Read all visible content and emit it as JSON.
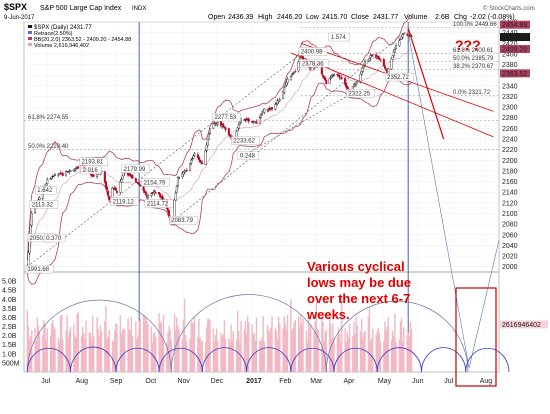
{
  "header": {
    "symbol": "$SPX",
    "name": "S&P 500 Large Cap Index",
    "exchange": "INDX",
    "date": "9-Jun-2017",
    "open_label": "Open",
    "open": "2436.39",
    "high_label": "High",
    "high": "2446.20",
    "low_label": "Low",
    "low": "2415.70",
    "close_label": "Close",
    "close": "2431.77",
    "volume_label": "Volume",
    "volume": "2.6B",
    "chg_label": "Chg",
    "chg": "-2.02 (-0.08%)",
    "watermark": "© StockCharts.com"
  },
  "legend": {
    "line1": "$SPX (Daily) 2431.77",
    "line2": "Retrace(2.50%)",
    "line3": "BB(20,2.0) 2363.52 - 2409.20 - 2454.88",
    "line4": "Volume 2,616,946,402"
  },
  "annotation": {
    "question": "???",
    "line1": "Various cyclical",
    "line2": "lows may be due",
    "line3": "over the next 6-7",
    "line4": "weeks."
  },
  "colors": {
    "up": "#1a1a1a",
    "down": "#c0001e",
    "bollinger": "#b04060",
    "volume": "#f2b8c4",
    "cycle_arc": "#3a3ac8",
    "vline": "#4466aa",
    "fib": "#999999",
    "annotation": "#e00000",
    "box": "#c00000"
  },
  "chart_data": {
    "type": "line",
    "title": "$SPX S&P 500 Large Cap Index INDX",
    "xlabel": "",
    "ylabel": "",
    "ylim": [
      1990,
      2460
    ],
    "volume_ylim": [
      0,
      5.5
    ],
    "x_ticks": [
      "Jul",
      "Aug",
      "Sep",
      "Oct",
      "Nov",
      "Dec",
      "2017",
      "Feb",
      "Mar",
      "Apr",
      "May",
      "Jun",
      "Jul",
      "Aug"
    ],
    "price_ticks": [
      "2460",
      "2440",
      "2420",
      "2400",
      "2380",
      "2360",
      "2340",
      "2320",
      "2300",
      "2280",
      "2260",
      "2240",
      "2220",
      "2200",
      "2180",
      "2160",
      "2140",
      "2120",
      "2100",
      "2080",
      "2060",
      "2040",
      "2020",
      "2000"
    ],
    "volume_ticks": [
      "5.0B",
      "4.5B",
      "4.0B",
      "3.5B",
      "3.0B",
      "2.5B",
      "2.0B",
      "1.5B",
      "1.0B",
      "500M"
    ],
    "last_values": [
      "2454.88",
      "2431.77",
      "2409.20",
      "2363.52",
      "2616946402"
    ],
    "fib_levels": [
      {
        "label": "100.0% 2449.66",
        "value": 2449.66
      },
      {
        "label": "61.8% 2400.61",
        "value": 2400.61
      },
      {
        "label": "50.0% 2385.79",
        "value": 2385.79
      },
      {
        "label": "38.2% 2370.67",
        "value": 2370.67
      },
      {
        "label": "0.0% 2321.72",
        "value": 2321.72
      },
      {
        "label": "61.8% 2274.55",
        "value": 2274.55
      },
      {
        "label": "50.0% 2220.40",
        "value": 2220.4
      }
    ],
    "price_labels": [
      {
        "label": "1991.68",
        "date": "2016-06-27",
        "value": 1991.68
      },
      {
        "label": "2113.32",
        "date": "2016-07-01",
        "value": 2113.32
      },
      {
        "label": "2050.37",
        "date": "2016-06-29",
        "value": 2050.37
      },
      {
        "label": "1.642",
        "date": "2016-07-06",
        "value": 2140
      },
      {
        "label": "0.370",
        "date": "2016-07-14",
        "value": 2050
      },
      {
        "label": "2193.81",
        "date": "2016-08-15",
        "value": 2193.81
      },
      {
        "label": "2.016",
        "date": "2016-08-16",
        "value": 2178
      },
      {
        "label": "2179.99",
        "date": "2016-09-22",
        "value": 2179.99
      },
      {
        "label": "2119.12",
        "date": "2016-09-12",
        "value": 2119.12
      },
      {
        "label": "2154.79",
        "date": "2016-10-10",
        "value": 2154.79
      },
      {
        "label": "2114.72",
        "date": "2016-10-13",
        "value": 2114.72
      },
      {
        "label": "2083.79",
        "date": "2016-11-04",
        "value": 2083.79
      },
      {
        "label": "2277.53",
        "date": "2016-12-13",
        "value": 2277.53
      },
      {
        "label": "2233.62",
        "date": "2016-12-30",
        "value": 2233.62
      },
      {
        "label": "0.248",
        "date": "2017-01-05",
        "value": 2205
      },
      {
        "label": "2400.98",
        "date": "2017-03-01",
        "value": 2400.98
      },
      {
        "label": "1.574",
        "date": "2017-03-28",
        "value": 2428
      },
      {
        "label": "2378.36",
        "date": "2017-03-02",
        "value": 2378.36
      },
      {
        "label": "2322.25",
        "date": "2017-04-13",
        "value": 2322.25
      },
      {
        "label": "2352.72",
        "date": "2017-05-18",
        "value": 2352.72
      }
    ],
    "series": [
      {
        "name": "$SPX",
        "x": [
          "2016-06-27",
          "2016-07-01",
          "2016-07-08",
          "2016-07-15",
          "2016-07-22",
          "2016-07-29",
          "2016-08-05",
          "2016-08-12",
          "2016-08-15",
          "2016-08-19",
          "2016-08-26",
          "2016-09-02",
          "2016-09-09",
          "2016-09-12",
          "2016-09-16",
          "2016-09-22",
          "2016-09-30",
          "2016-10-07",
          "2016-10-13",
          "2016-10-21",
          "2016-10-28",
          "2016-11-04",
          "2016-11-10",
          "2016-11-18",
          "2016-11-25",
          "2016-12-02",
          "2016-12-09",
          "2016-12-13",
          "2016-12-21",
          "2016-12-30",
          "2017-01-06",
          "2017-01-13",
          "2017-01-20",
          "2017-01-27",
          "2017-02-03",
          "2017-02-10",
          "2017-02-17",
          "2017-02-24",
          "2017-03-01",
          "2017-03-10",
          "2017-03-17",
          "2017-03-24",
          "2017-03-31",
          "2017-04-07",
          "2017-04-13",
          "2017-04-21",
          "2017-04-28",
          "2017-05-05",
          "2017-05-12",
          "2017-05-18",
          "2017-05-26",
          "2017-06-02",
          "2017-06-09"
        ],
        "values": [
          2000,
          2102,
          2130,
          2162,
          2175,
          2173,
          2182,
          2186,
          2192,
          2183,
          2169,
          2180,
          2128,
          2150,
          2140,
          2178,
          2168,
          2153,
          2132,
          2141,
          2126,
          2085,
          2167,
          2182,
          2213,
          2192,
          2259,
          2272,
          2264,
          2239,
          2276,
          2275,
          2271,
          2295,
          2297,
          2316,
          2351,
          2367,
          2396,
          2373,
          2378,
          2344,
          2362,
          2355,
          2329,
          2349,
          2384,
          2399,
          2390,
          2365,
          2416,
          2439,
          2432
        ]
      }
    ],
    "projection_lines": [
      {
        "from": {
          "date": "2017-06-06",
          "value": 2448
        },
        "to": {
          "date": "2017-07-08",
          "value": 2240
        }
      },
      {
        "from": {
          "date": "2017-03-01",
          "value": 2420
        },
        "to": {
          "date": "2017-08-22",
          "value": 2292
        }
      },
      {
        "from": {
          "date": "2017-02-20",
          "value": 2402
        },
        "to": {
          "date": "2017-08-22",
          "value": 2244
        }
      }
    ],
    "cycle_lows": [
      "2016-06-27",
      "2016-11-04",
      "2017-03-24",
      "2017-07-30"
    ],
    "cycle_peaks": [
      "2016-06-27",
      "2016-10-05",
      "2017-03-29",
      "2017-07-31"
    ],
    "vertical_markers": [
      "2016-10-06",
      "2017-06-06"
    ]
  }
}
